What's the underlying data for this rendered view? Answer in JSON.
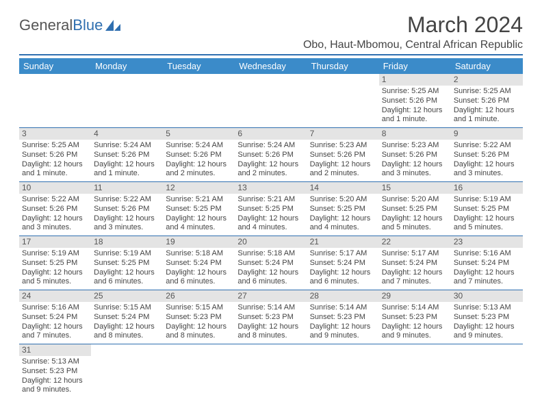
{
  "brand": {
    "part1": "General",
    "part2": "Blue"
  },
  "title": "March 2024",
  "location": "Obo, Haut-Mbomou, Central African Republic",
  "colors": {
    "header_bg": "#3b8bc9",
    "rule": "#2f6fb0",
    "daynum_bg": "#e4e4e4",
    "text": "#444444"
  },
  "weekdays": [
    "Sunday",
    "Monday",
    "Tuesday",
    "Wednesday",
    "Thursday",
    "Friday",
    "Saturday"
  ],
  "weeks": [
    [
      null,
      null,
      null,
      null,
      null,
      {
        "n": "1",
        "sr": "Sunrise: 5:25 AM",
        "ss": "Sunset: 5:26 PM",
        "d1": "Daylight: 12 hours",
        "d2": "and 1 minute."
      },
      {
        "n": "2",
        "sr": "Sunrise: 5:25 AM",
        "ss": "Sunset: 5:26 PM",
        "d1": "Daylight: 12 hours",
        "d2": "and 1 minute."
      }
    ],
    [
      {
        "n": "3",
        "sr": "Sunrise: 5:25 AM",
        "ss": "Sunset: 5:26 PM",
        "d1": "Daylight: 12 hours",
        "d2": "and 1 minute."
      },
      {
        "n": "4",
        "sr": "Sunrise: 5:24 AM",
        "ss": "Sunset: 5:26 PM",
        "d1": "Daylight: 12 hours",
        "d2": "and 1 minute."
      },
      {
        "n": "5",
        "sr": "Sunrise: 5:24 AM",
        "ss": "Sunset: 5:26 PM",
        "d1": "Daylight: 12 hours",
        "d2": "and 2 minutes."
      },
      {
        "n": "6",
        "sr": "Sunrise: 5:24 AM",
        "ss": "Sunset: 5:26 PM",
        "d1": "Daylight: 12 hours",
        "d2": "and 2 minutes."
      },
      {
        "n": "7",
        "sr": "Sunrise: 5:23 AM",
        "ss": "Sunset: 5:26 PM",
        "d1": "Daylight: 12 hours",
        "d2": "and 2 minutes."
      },
      {
        "n": "8",
        "sr": "Sunrise: 5:23 AM",
        "ss": "Sunset: 5:26 PM",
        "d1": "Daylight: 12 hours",
        "d2": "and 3 minutes."
      },
      {
        "n": "9",
        "sr": "Sunrise: 5:22 AM",
        "ss": "Sunset: 5:26 PM",
        "d1": "Daylight: 12 hours",
        "d2": "and 3 minutes."
      }
    ],
    [
      {
        "n": "10",
        "sr": "Sunrise: 5:22 AM",
        "ss": "Sunset: 5:26 PM",
        "d1": "Daylight: 12 hours",
        "d2": "and 3 minutes."
      },
      {
        "n": "11",
        "sr": "Sunrise: 5:22 AM",
        "ss": "Sunset: 5:26 PM",
        "d1": "Daylight: 12 hours",
        "d2": "and 3 minutes."
      },
      {
        "n": "12",
        "sr": "Sunrise: 5:21 AM",
        "ss": "Sunset: 5:25 PM",
        "d1": "Daylight: 12 hours",
        "d2": "and 4 minutes."
      },
      {
        "n": "13",
        "sr": "Sunrise: 5:21 AM",
        "ss": "Sunset: 5:25 PM",
        "d1": "Daylight: 12 hours",
        "d2": "and 4 minutes."
      },
      {
        "n": "14",
        "sr": "Sunrise: 5:20 AM",
        "ss": "Sunset: 5:25 PM",
        "d1": "Daylight: 12 hours",
        "d2": "and 4 minutes."
      },
      {
        "n": "15",
        "sr": "Sunrise: 5:20 AM",
        "ss": "Sunset: 5:25 PM",
        "d1": "Daylight: 12 hours",
        "d2": "and 5 minutes."
      },
      {
        "n": "16",
        "sr": "Sunrise: 5:19 AM",
        "ss": "Sunset: 5:25 PM",
        "d1": "Daylight: 12 hours",
        "d2": "and 5 minutes."
      }
    ],
    [
      {
        "n": "17",
        "sr": "Sunrise: 5:19 AM",
        "ss": "Sunset: 5:25 PM",
        "d1": "Daylight: 12 hours",
        "d2": "and 5 minutes."
      },
      {
        "n": "18",
        "sr": "Sunrise: 5:19 AM",
        "ss": "Sunset: 5:25 PM",
        "d1": "Daylight: 12 hours",
        "d2": "and 6 minutes."
      },
      {
        "n": "19",
        "sr": "Sunrise: 5:18 AM",
        "ss": "Sunset: 5:24 PM",
        "d1": "Daylight: 12 hours",
        "d2": "and 6 minutes."
      },
      {
        "n": "20",
        "sr": "Sunrise: 5:18 AM",
        "ss": "Sunset: 5:24 PM",
        "d1": "Daylight: 12 hours",
        "d2": "and 6 minutes."
      },
      {
        "n": "21",
        "sr": "Sunrise: 5:17 AM",
        "ss": "Sunset: 5:24 PM",
        "d1": "Daylight: 12 hours",
        "d2": "and 6 minutes."
      },
      {
        "n": "22",
        "sr": "Sunrise: 5:17 AM",
        "ss": "Sunset: 5:24 PM",
        "d1": "Daylight: 12 hours",
        "d2": "and 7 minutes."
      },
      {
        "n": "23",
        "sr": "Sunrise: 5:16 AM",
        "ss": "Sunset: 5:24 PM",
        "d1": "Daylight: 12 hours",
        "d2": "and 7 minutes."
      }
    ],
    [
      {
        "n": "24",
        "sr": "Sunrise: 5:16 AM",
        "ss": "Sunset: 5:24 PM",
        "d1": "Daylight: 12 hours",
        "d2": "and 7 minutes."
      },
      {
        "n": "25",
        "sr": "Sunrise: 5:15 AM",
        "ss": "Sunset: 5:24 PM",
        "d1": "Daylight: 12 hours",
        "d2": "and 8 minutes."
      },
      {
        "n": "26",
        "sr": "Sunrise: 5:15 AM",
        "ss": "Sunset: 5:23 PM",
        "d1": "Daylight: 12 hours",
        "d2": "and 8 minutes."
      },
      {
        "n": "27",
        "sr": "Sunrise: 5:14 AM",
        "ss": "Sunset: 5:23 PM",
        "d1": "Daylight: 12 hours",
        "d2": "and 8 minutes."
      },
      {
        "n": "28",
        "sr": "Sunrise: 5:14 AM",
        "ss": "Sunset: 5:23 PM",
        "d1": "Daylight: 12 hours",
        "d2": "and 9 minutes."
      },
      {
        "n": "29",
        "sr": "Sunrise: 5:14 AM",
        "ss": "Sunset: 5:23 PM",
        "d1": "Daylight: 12 hours",
        "d2": "and 9 minutes."
      },
      {
        "n": "30",
        "sr": "Sunrise: 5:13 AM",
        "ss": "Sunset: 5:23 PM",
        "d1": "Daylight: 12 hours",
        "d2": "and 9 minutes."
      }
    ],
    [
      {
        "n": "31",
        "sr": "Sunrise: 5:13 AM",
        "ss": "Sunset: 5:23 PM",
        "d1": "Daylight: 12 hours",
        "d2": "and 9 minutes."
      },
      null,
      null,
      null,
      null,
      null,
      null
    ]
  ]
}
